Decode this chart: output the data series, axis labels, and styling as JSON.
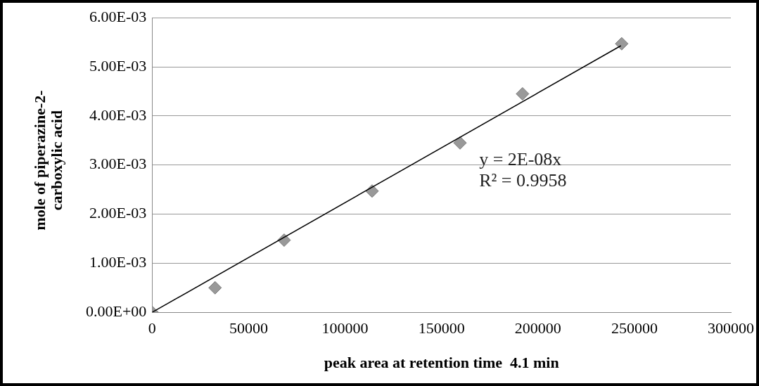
{
  "chart_data": {
    "type": "scatter",
    "xlabel": "peak area at retention time  4.1 min",
    "ylabel": "mole of  piperazine-2-carboxylic acid",
    "x": [
      0,
      32600,
      68400,
      114000,
      159600,
      192000,
      243400
    ],
    "series": [
      {
        "color": "#999999",
        "values": [
          0,
          0.0005,
          0.00147,
          0.00247,
          0.00345,
          0.00445,
          0.00547
        ],
        "marker": "diamond"
      },
      {
        "type": "line",
        "color": "#000000",
        "x": [
          0,
          243000
        ],
        "values": [
          0,
          0.00543
        ],
        "marker": "none"
      }
    ],
    "xlim": [
      0,
      300000
    ],
    "xticks": [
      0,
      50000,
      100000,
      150000,
      200000,
      250000,
      300000
    ],
    "ylim": [
      0,
      0.006
    ],
    "yticks": [
      {
        "value": 0,
        "label": "0.00E+00"
      },
      {
        "value": 0.001,
        "label": "1.00E-03"
      },
      {
        "value": 0.002,
        "label": "2.00E-03"
      },
      {
        "value": 0.003,
        "label": "3.00E-03"
      },
      {
        "value": 0.004,
        "label": "4.00E-03"
      },
      {
        "value": 0.005,
        "label": "5.00E-03"
      },
      {
        "value": 0.006,
        "label": "6.00E-03"
      }
    ],
    "grid": "y",
    "legend": false,
    "annotations": [
      "y = 2E-08x",
      "R² = 0.9958"
    ]
  }
}
